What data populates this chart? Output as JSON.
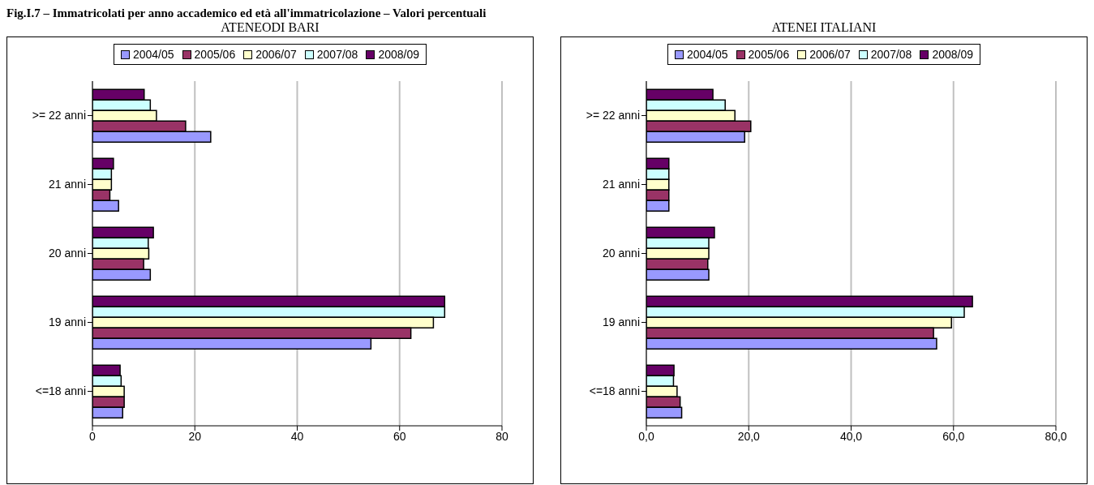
{
  "chart_data": [
    {
      "type": "bar",
      "title": "Fig.I.7 – Immatricolati per anno accademico ed età all'immatricolazione – Valori percentuali",
      "subtitle": "ATENEODI BARI",
      "orientation": "horizontal",
      "categories": [
        ">= 22 anni",
        "21 anni",
        "20 anni",
        "19 anni",
        "<=18 anni"
      ],
      "series": [
        {
          "name": "2004/05",
          "color": "#9999ff",
          "values": [
            23.1,
            5.1,
            11.3,
            54.4,
            5.9
          ]
        },
        {
          "name": "2005/06",
          "color": "#993366",
          "values": [
            18.2,
            3.4,
            10.0,
            62.2,
            6.2
          ]
        },
        {
          "name": "2006/07",
          "color": "#ffffcc",
          "values": [
            12.5,
            3.7,
            11.0,
            66.6,
            6.2
          ]
        },
        {
          "name": "2007/08",
          "color": "#ccffff",
          "values": [
            11.3,
            3.7,
            10.9,
            68.8,
            5.6
          ]
        },
        {
          "name": "2008/09",
          "color": "#660066",
          "values": [
            10.1,
            4.1,
            11.9,
            68.8,
            5.4
          ]
        }
      ],
      "xlim": [
        0,
        80
      ],
      "xticks": [
        0,
        20,
        40,
        60,
        80
      ],
      "grid": "x",
      "legend": "top"
    },
    {
      "type": "bar",
      "subtitle": "ATENEI ITALIANI",
      "orientation": "horizontal",
      "categories": [
        ">= 22 anni",
        "21 anni",
        "20 anni",
        "19 anni",
        "<=18 anni"
      ],
      "series": [
        {
          "name": "2004/05",
          "color": "#9999ff",
          "values": [
            19.2,
            4.4,
            12.2,
            56.7,
            6.9
          ]
        },
        {
          "name": "2005/06",
          "color": "#993366",
          "values": [
            20.4,
            4.4,
            12.0,
            56.1,
            6.6
          ]
        },
        {
          "name": "2006/07",
          "color": "#ffffcc",
          "values": [
            17.3,
            4.4,
            12.2,
            59.6,
            6.0
          ]
        },
        {
          "name": "2007/08",
          "color": "#ccffff",
          "values": [
            15.4,
            4.4,
            12.2,
            62.1,
            5.3
          ]
        },
        {
          "name": "2008/09",
          "color": "#660066",
          "values": [
            13.0,
            4.4,
            13.3,
            63.7,
            5.4
          ]
        }
      ],
      "xlim": [
        0,
        80
      ],
      "xticks": [
        {
          "value": 0,
          "label": "0,0"
        },
        {
          "value": 20,
          "label": "20,0"
        },
        {
          "value": 40,
          "label": "40,0"
        },
        {
          "value": 60,
          "label": "60,0"
        },
        {
          "value": 80,
          "label": "80,0"
        }
      ],
      "grid": "x",
      "legend": "top"
    }
  ]
}
